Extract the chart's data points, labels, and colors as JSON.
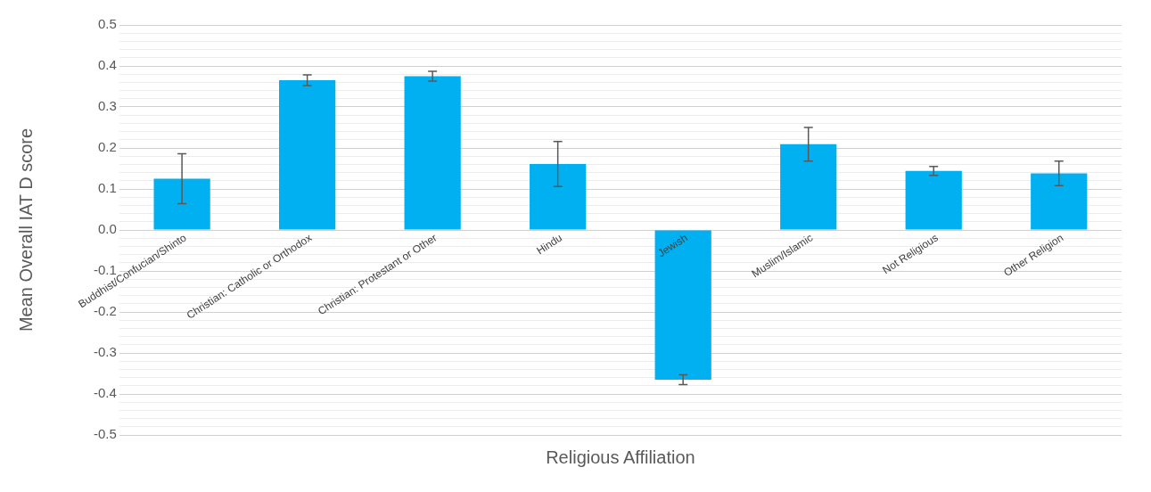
{
  "chart_data": {
    "type": "bar",
    "xlabel": "Religious Affiliation",
    "ylabel": "Mean Overall IAT D score",
    "categories": [
      "Buddhist/Confucian/Shinto",
      "Christian: Catholic or Orthodox",
      "Christian: Protestant or Other",
      "Hindu",
      "Jewish",
      "Muslim/Islamic",
      "Not Religious",
      "Other Religion"
    ],
    "values": [
      0.125,
      0.365,
      0.375,
      0.161,
      -0.365,
      0.209,
      0.144,
      0.138
    ],
    "errors": [
      0.061,
      0.013,
      0.012,
      0.055,
      0.012,
      0.041,
      0.011,
      0.03
    ],
    "color": "#00b0f0",
    "ylim": [
      -0.5,
      0.5
    ],
    "yticks": [
      {
        "value": -0.5,
        "label": "-0.5"
      },
      {
        "value": -0.48,
        "label": null
      },
      {
        "value": -0.46,
        "label": null
      },
      {
        "value": -0.44,
        "label": null
      },
      {
        "value": -0.42,
        "label": null
      },
      {
        "value": -0.4,
        "label": "-0.4"
      },
      {
        "value": -0.38,
        "label": null
      },
      {
        "value": -0.36,
        "label": null
      },
      {
        "value": -0.34,
        "label": null
      },
      {
        "value": -0.32,
        "label": null
      },
      {
        "value": -0.3,
        "label": "-0.3"
      },
      {
        "value": -0.28,
        "label": null
      },
      {
        "value": -0.26,
        "label": null
      },
      {
        "value": -0.24,
        "label": null
      },
      {
        "value": -0.22,
        "label": null
      },
      {
        "value": -0.2,
        "label": "-0.2"
      },
      {
        "value": -0.18,
        "label": null
      },
      {
        "value": -0.16,
        "label": null
      },
      {
        "value": -0.14,
        "label": null
      },
      {
        "value": -0.12,
        "label": null
      },
      {
        "value": -0.1,
        "label": "-0.1"
      },
      {
        "value": -0.08,
        "label": null
      },
      {
        "value": -0.06,
        "label": null
      },
      {
        "value": -0.04,
        "label": null
      },
      {
        "value": -0.02,
        "label": null
      },
      {
        "value": 0,
        "label": "0.0"
      },
      {
        "value": 0.02,
        "label": null
      },
      {
        "value": 0.04,
        "label": null
      },
      {
        "value": 0.06,
        "label": null
      },
      {
        "value": 0.08,
        "label": null
      },
      {
        "value": 0.1,
        "label": "0.1"
      },
      {
        "value": 0.12,
        "label": null
      },
      {
        "value": 0.14,
        "label": null
      },
      {
        "value": 0.16,
        "label": null
      },
      {
        "value": 0.18,
        "label": null
      },
      {
        "value": 0.2,
        "label": "0.2"
      },
      {
        "value": 0.22,
        "label": null
      },
      {
        "value": 0.24,
        "label": null
      },
      {
        "value": 0.26,
        "label": null
      },
      {
        "value": 0.28,
        "label": null
      },
      {
        "value": 0.3,
        "label": "0.3"
      },
      {
        "value": 0.32,
        "label": null
      },
      {
        "value": 0.34,
        "label": null
      },
      {
        "value": 0.36,
        "label": null
      },
      {
        "value": 0.38,
        "label": null
      },
      {
        "value": 0.4,
        "label": "0.4"
      },
      {
        "value": 0.42,
        "label": null
      },
      {
        "value": 0.44,
        "label": null
      },
      {
        "value": 0.46,
        "label": null
      },
      {
        "value": 0.48,
        "label": null
      },
      {
        "value": 0.5,
        "label": "0.5"
      }
    ],
    "grid": "y"
  }
}
